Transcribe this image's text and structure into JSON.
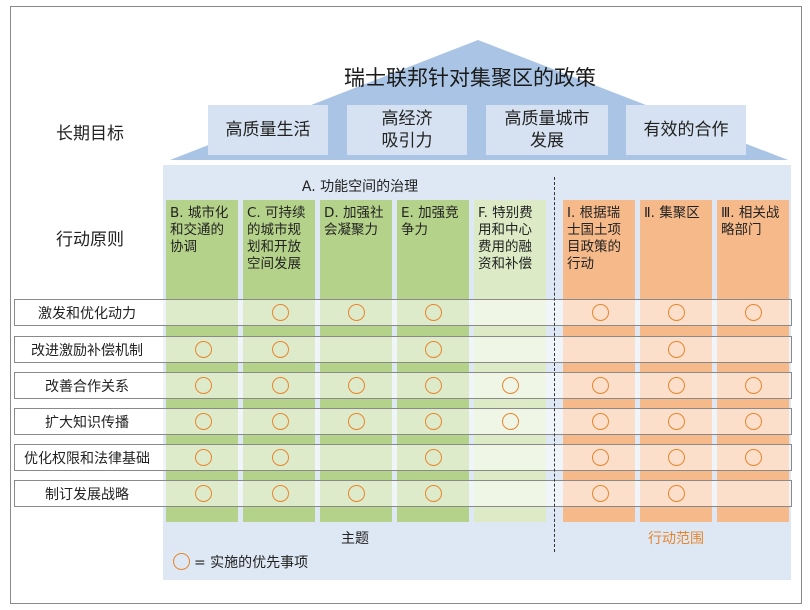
{
  "title": "瑞士联邦针对集聚区的政策",
  "long_term_goals_label": "长期目标",
  "goals": [
    [
      "高质量生活"
    ],
    [
      "高经济",
      "吸引力"
    ],
    [
      "高质量城市",
      "发展"
    ],
    [
      "有效的合作"
    ]
  ],
  "action_principles_label": "行动原则",
  "group_a_title": "A. 功能空间的治理",
  "columns": [
    {
      "label": "B. 城市化和交通的协调",
      "type": "green"
    },
    {
      "label": "C. 可持续的城市规划和开放空间发展",
      "type": "green"
    },
    {
      "label": "D. 加强社会凝聚力",
      "type": "green"
    },
    {
      "label": "E. 加强竞争力",
      "type": "green"
    },
    {
      "label": "F. 特别费用和中心费用的融资和补偿",
      "type": "light"
    },
    {
      "label": "Ⅰ. 根据瑞士国土项目政策的行动",
      "type": "orange"
    },
    {
      "label": "Ⅱ. 集聚区",
      "type": "orange"
    },
    {
      "label": "Ⅲ. 相关战略部门",
      "type": "orange"
    }
  ],
  "rows": [
    {
      "label": "激发和优化动力",
      "marks": [
        0,
        1,
        1,
        1,
        0,
        1,
        1,
        1
      ]
    },
    {
      "label": "改进激励补偿机制",
      "marks": [
        1,
        1,
        0,
        1,
        0,
        0,
        1,
        0
      ]
    },
    {
      "label": "改善合作关系",
      "marks": [
        1,
        1,
        1,
        1,
        1,
        1,
        1,
        1
      ]
    },
    {
      "label": "扩大知识传播",
      "marks": [
        1,
        1,
        1,
        1,
        1,
        1,
        1,
        1
      ]
    },
    {
      "label": "优化权限和法律基础",
      "marks": [
        1,
        1,
        0,
        1,
        0,
        1,
        1,
        1
      ]
    },
    {
      "label": "制订发展战略",
      "marks": [
        1,
        1,
        1,
        1,
        0,
        1,
        1,
        0
      ]
    }
  ],
  "theme_label": "主题",
  "scope_label": "行动范围",
  "legend_text": "= 实施的优先事项",
  "colors": {
    "green": "#b5d28a",
    "light": "#dcebc6",
    "orange": "#f6b98a",
    "marker": "#e8852e",
    "roof": "#a9c4e4"
  }
}
